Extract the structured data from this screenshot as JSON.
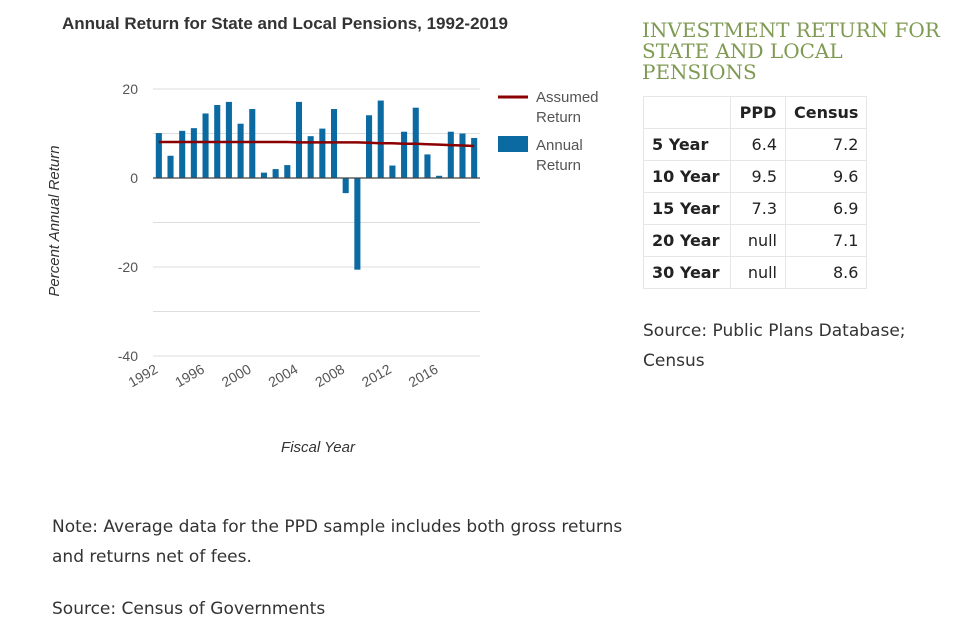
{
  "chart_data": {
    "type": "bar",
    "title": "Annual Return for State and Local Pensions, 1992-2019",
    "xlabel": "Fiscal Year",
    "ylabel": "Percent Annual Return",
    "ylim": [
      -40,
      20
    ],
    "yticks": [
      20,
      0,
      -20,
      -40
    ],
    "grid": true,
    "legend_position": "right",
    "x": [
      1992,
      1993,
      1994,
      1995,
      1996,
      1997,
      1998,
      1999,
      2000,
      2001,
      2002,
      2003,
      2004,
      2005,
      2006,
      2007,
      2008,
      2009,
      2010,
      2011,
      2012,
      2013,
      2014,
      2015,
      2016,
      2017,
      2018,
      2019
    ],
    "xtick_labels": [
      "1992",
      "1996",
      "2000",
      "2004",
      "2008",
      "2012",
      "2016"
    ],
    "series": [
      {
        "name": "Annual Return",
        "type": "bar",
        "color": "#0a6aa1",
        "values": [
          10.1,
          5.0,
          10.6,
          11.2,
          14.5,
          16.4,
          17.1,
          12.2,
          15.5,
          1.2,
          2.0,
          2.9,
          17.1,
          9.4,
          11.1,
          15.5,
          -3.4,
          -20.6,
          14.1,
          17.4,
          2.8,
          10.4,
          15.8,
          5.3,
          0.5,
          10.4,
          10.0,
          9.0
        ]
      },
      {
        "name": "Assumed Return",
        "type": "line",
        "color": "#8b0000",
        "values": [
          8.1,
          8.1,
          8.1,
          8.1,
          8.1,
          8.1,
          8.1,
          8.1,
          8.1,
          8.1,
          8.1,
          8.1,
          8.0,
          8.0,
          8.0,
          8.0,
          8.0,
          8.0,
          7.9,
          7.8,
          7.8,
          7.7,
          7.7,
          7.6,
          7.5,
          7.4,
          7.3,
          7.2
        ]
      }
    ]
  },
  "side_panel": {
    "title_lines": [
      "INVESTMENT RETURN FOR",
      "STATE AND LOCAL",
      "PENSIONS"
    ],
    "table": {
      "headers": [
        "",
        "PPD",
        "Census"
      ],
      "rows": [
        {
          "label": "5 Year",
          "ppd": "6.4",
          "census": "7.2"
        },
        {
          "label": "10 Year",
          "ppd": "9.5",
          "census": "9.6"
        },
        {
          "label": "15 Year",
          "ppd": "7.3",
          "census": "6.9"
        },
        {
          "label": "20 Year",
          "ppd": "null",
          "census": "7.1"
        },
        {
          "label": "30 Year",
          "ppd": "null",
          "census": "8.6"
        }
      ]
    },
    "source_text": "Source: Public Plans Database; Census"
  },
  "note": {
    "line1": "Note: Average data for the PPD sample includes both gross returns",
    "line2": "and returns net of fees."
  },
  "bottom_source": "Source: Census of Governments",
  "colors": {
    "bar": "#0a6aa1",
    "assumed_line": "#8b0000",
    "side_title": "#7f9a53",
    "grid": "#dddddd"
  }
}
